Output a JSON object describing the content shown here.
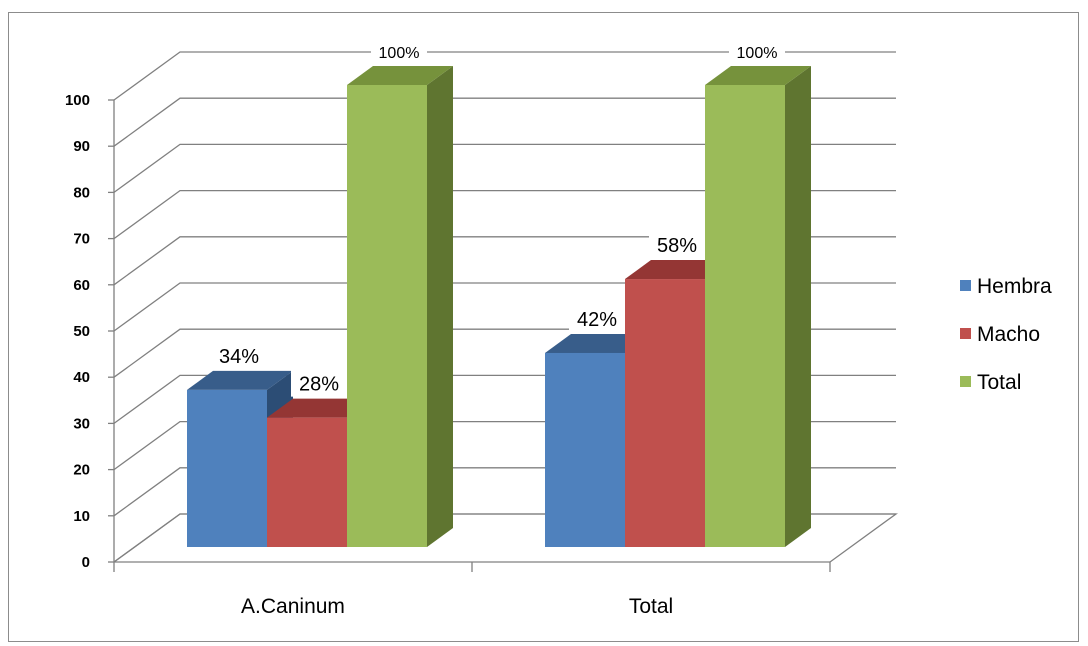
{
  "chart_data": {
    "type": "bar",
    "style": "3d-clustered-column",
    "categories": [
      "A.Caninum",
      "Total"
    ],
    "series": [
      {
        "name": "Hembra",
        "values": [
          34,
          42
        ],
        "labels": [
          "34%",
          "42%"
        ],
        "color": "#4f81bd",
        "top_color": "#385d8a",
        "side_color": "#2c4d75"
      },
      {
        "name": "Macho",
        "values": [
          28,
          58
        ],
        "labels": [
          "28%",
          "58%"
        ],
        "color": "#c0504d",
        "top_color": "#943634",
        "side_color": "#8b3a38"
      },
      {
        "name": "Total",
        "values": [
          100,
          100
        ],
        "labels": [
          "100%",
          "100%"
        ],
        "color": "#9bbb59",
        "top_color": "#76923c",
        "side_color": "#5f7530"
      }
    ],
    "y_ticks": [
      "0",
      "10",
      "20",
      "30",
      "40",
      "50",
      "60",
      "70",
      "80",
      "90",
      "100"
    ],
    "ylim": [
      0,
      100
    ],
    "title": "",
    "xlabel": "",
    "ylabel": "",
    "grid": true,
    "legend_position": "right"
  }
}
